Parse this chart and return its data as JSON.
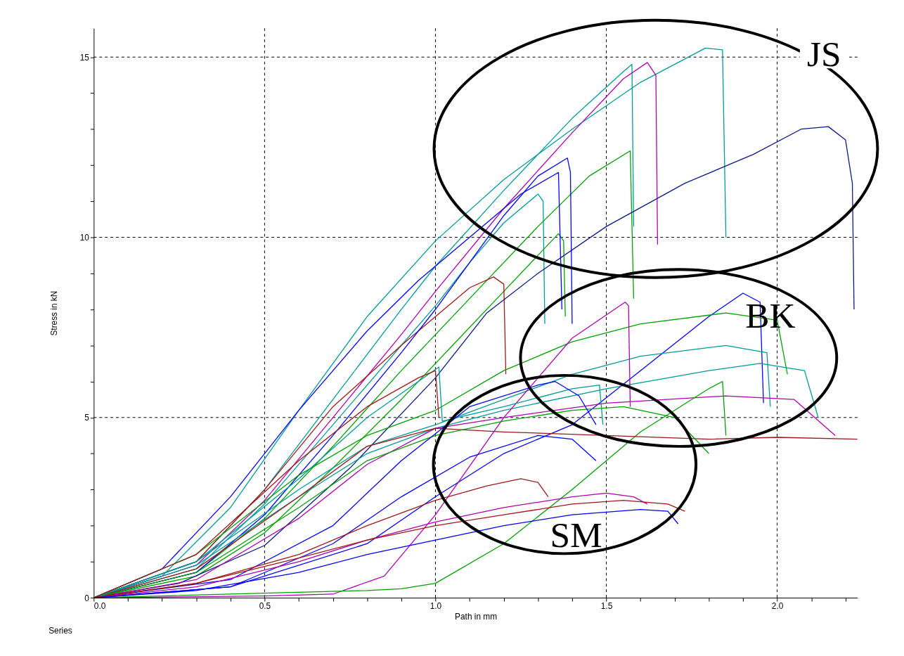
{
  "chart_data": {
    "type": "line",
    "xlabel": "Path in mm",
    "ylabel": "Stress in kN",
    "xlim": [
      0,
      2.235
    ],
    "ylim": [
      0,
      15.8
    ],
    "xticks": [
      {
        "value": 0,
        "label": "0.0"
      },
      {
        "value": 0.1,
        "label": null
      },
      {
        "value": 0.2,
        "label": null
      },
      {
        "value": 0.3,
        "label": null
      },
      {
        "value": 0.4,
        "label": null
      },
      {
        "value": 0.5,
        "label": "0.5"
      },
      {
        "value": 0.6,
        "label": null
      },
      {
        "value": 0.7,
        "label": null
      },
      {
        "value": 0.8,
        "label": null
      },
      {
        "value": 0.9,
        "label": null
      },
      {
        "value": 1,
        "label": "1.0"
      },
      {
        "value": 1.1,
        "label": null
      },
      {
        "value": 1.2,
        "label": null
      },
      {
        "value": 1.3,
        "label": null
      },
      {
        "value": 1.4,
        "label": null
      },
      {
        "value": 1.5,
        "label": "1.5"
      },
      {
        "value": 1.6,
        "label": null
      },
      {
        "value": 1.7,
        "label": null
      },
      {
        "value": 1.8,
        "label": null
      },
      {
        "value": 1.9,
        "label": null
      },
      {
        "value": 2,
        "label": "2.0"
      },
      {
        "value": 2.1,
        "label": null
      },
      {
        "value": 2.2,
        "label": null
      }
    ],
    "yticks": [
      0,
      {
        "value": 1,
        "label": null
      },
      {
        "value": 2,
        "label": null
      },
      {
        "value": 3,
        "label": null
      },
      {
        "value": 4,
        "label": null
      },
      5,
      {
        "value": 6,
        "label": null
      },
      {
        "value": 7,
        "label": null
      },
      {
        "value": 8,
        "label": null
      },
      {
        "value": 9,
        "label": null
      },
      10,
      {
        "value": 11,
        "label": null
      },
      {
        "value": 12,
        "label": null
      },
      {
        "value": 13,
        "label": null
      },
      {
        "value": 14,
        "label": null
      },
      15
    ],
    "grid": true,
    "line_style": "solid",
    "series": [
      {
        "color": "#009a9a",
        "x": [
          0,
          0.2,
          0.4,
          0.6,
          0.8,
          1.0,
          1.2,
          1.4,
          1.6,
          1.79,
          1.84,
          1.85
        ],
        "values": [
          0,
          0.6,
          2.5,
          5.2,
          7.8,
          9.9,
          11.6,
          13.0,
          14.3,
          15.25,
          15.2,
          10.0
        ]
      },
      {
        "color": "#009a9a",
        "x": [
          0,
          0.3,
          0.5,
          0.7,
          0.9,
          1.0,
          1.2,
          1.4,
          1.55,
          1.575,
          1.58
        ],
        "values": [
          0,
          1.0,
          3.0,
          5.5,
          8.0,
          9.2,
          11.3,
          13.3,
          14.6,
          14.8,
          10.3
        ]
      },
      {
        "color": "#b000b0",
        "x": [
          0,
          0.3,
          0.5,
          0.7,
          0.9,
          1.0,
          1.2,
          1.4,
          1.55,
          1.62,
          1.645,
          1.65
        ],
        "values": [
          0,
          0.9,
          2.7,
          5.0,
          7.3,
          8.5,
          10.8,
          12.9,
          14.4,
          14.85,
          14.5,
          9.8
        ]
      },
      {
        "color": "#00a000",
        "x": [
          0,
          0.3,
          0.5,
          0.7,
          0.9,
          1.1,
          1.3,
          1.45,
          1.57,
          1.58
        ],
        "values": [
          0,
          0.7,
          2.2,
          4.2,
          6.3,
          8.3,
          10.3,
          11.7,
          12.4,
          8.3
        ]
      },
      {
        "color": "#009a9a",
        "x": [
          0,
          0.3,
          0.5,
          0.7,
          0.9,
          1.0,
          1.1,
          1.2,
          1.3,
          1.315,
          1.32
        ],
        "values": [
          0,
          0.8,
          2.6,
          4.8,
          7.0,
          8.1,
          9.3,
          10.4,
          11.2,
          11.0,
          7.6
        ]
      },
      {
        "color": "#00a000",
        "x": [
          0,
          0.3,
          0.5,
          0.7,
          0.9,
          1.05,
          1.2,
          1.3,
          1.36,
          1.375,
          1.38
        ],
        "values": [
          0,
          0.6,
          1.8,
          3.6,
          5.5,
          7.0,
          8.5,
          9.5,
          10.1,
          9.9,
          7.8
        ]
      },
      {
        "color": "#a01818",
        "x": [
          0,
          0.3,
          0.5,
          0.7,
          0.9,
          1.0,
          1.1,
          1.17,
          1.2,
          1.206
        ],
        "values": [
          0,
          1.0,
          3.0,
          5.3,
          7.0,
          7.8,
          8.6,
          8.9,
          8.7,
          6.2
        ]
      },
      {
        "color": "#0a1a80",
        "x": [
          0,
          0.25,
          0.5,
          0.75,
          1.0,
          1.15,
          1.3,
          1.5,
          1.73,
          1.93,
          2.07,
          2.15,
          2.2,
          2.22,
          2.225
        ],
        "values": [
          0,
          0.4,
          1.45,
          3.6,
          6.1,
          7.9,
          9.0,
          10.3,
          11.5,
          12.3,
          13.0,
          13.07,
          12.7,
          11.5,
          8.0
        ]
      },
      {
        "color": "#0000ff",
        "x": [
          0,
          0.2,
          0.4,
          0.6,
          0.8,
          0.95,
          1.1,
          1.25,
          1.36,
          1.37
        ],
        "values": [
          0,
          0.8,
          2.8,
          5.2,
          7.4,
          8.8,
          10.0,
          11.2,
          11.8,
          8.0
        ]
      },
      {
        "color": "#0000ff",
        "x": [
          0,
          0.3,
          0.5,
          0.7,
          0.9,
          1.0,
          1.1,
          1.2,
          1.3,
          1.386,
          1.395,
          1.4
        ],
        "values": [
          0,
          0.7,
          2.3,
          4.5,
          6.8,
          8.0,
          9.3,
          10.6,
          11.7,
          12.2,
          11.8,
          7.6
        ]
      },
      {
        "color": "#0000ff",
        "x": [
          0,
          0.4,
          0.8,
          1.0,
          1.2,
          1.4,
          1.6,
          1.8,
          1.9,
          1.95,
          1.96
        ],
        "values": [
          0,
          0.3,
          1.5,
          2.8,
          4.0,
          4.8,
          6.3,
          7.8,
          8.45,
          8.2,
          5.4
        ]
      },
      {
        "color": "#00a000",
        "x": [
          0,
          0.3,
          0.6,
          0.8,
          1.0,
          1.2,
          1.4,
          1.6,
          1.85,
          2.0,
          2.03
        ],
        "values": [
          0,
          1.2,
          3.4,
          4.5,
          5.2,
          6.3,
          7.1,
          7.6,
          7.9,
          7.7,
          6.2
        ]
      },
      {
        "color": "#009a9a",
        "x": [
          0,
          0.3,
          0.6,
          0.8,
          1.0,
          1.2,
          1.4,
          1.6,
          1.85,
          1.97,
          1.98
        ],
        "values": [
          0,
          1.0,
          3.0,
          4.2,
          4.8,
          5.5,
          6.2,
          6.7,
          7.0,
          6.8,
          5.3
        ]
      },
      {
        "color": "#009a9a",
        "x": [
          0,
          0.3,
          0.6,
          0.8,
          1.0,
          1.2,
          1.5,
          1.8,
          1.95,
          2.08,
          2.12
        ],
        "values": [
          0,
          0.9,
          2.8,
          4.0,
          4.7,
          5.2,
          5.8,
          6.3,
          6.5,
          6.3,
          5.0
        ]
      },
      {
        "color": "#b000b0",
        "x": [
          0,
          0.3,
          0.6,
          0.8,
          1.0,
          1.2,
          1.5,
          1.85,
          2.05,
          2.17
        ],
        "values": [
          0,
          0.5,
          2.2,
          3.7,
          4.7,
          5.0,
          5.4,
          5.6,
          5.5,
          4.5
        ]
      },
      {
        "color": "#b000b0",
        "x": [
          0,
          0.5,
          0.7,
          0.85,
          1.0,
          1.2,
          1.4,
          1.555,
          1.565,
          1.57
        ],
        "values": [
          0,
          0.05,
          0.1,
          0.6,
          2.3,
          5.0,
          7.2,
          8.2,
          8.1,
          5.3
        ]
      },
      {
        "color": "#00a000",
        "x": [
          0,
          0.4,
          0.8,
          0.9,
          1.0,
          1.2,
          1.4,
          1.6,
          1.8,
          1.84,
          1.85
        ],
        "values": [
          0,
          0.1,
          0.2,
          0.25,
          0.4,
          1.5,
          3.0,
          4.6,
          5.8,
          6.0,
          4.5
        ]
      },
      {
        "color": "#a01818",
        "x": [
          0,
          0.3,
          0.6,
          0.8,
          1.0,
          1.2,
          1.5,
          1.8,
          2.0,
          2.235
        ],
        "values": [
          0,
          0.8,
          2.8,
          4.2,
          4.7,
          4.6,
          4.5,
          4.4,
          4.45,
          4.4
        ]
      },
      {
        "color": "#00a000",
        "x": [
          0,
          0.3,
          0.6,
          0.8,
          1.0,
          1.2,
          1.4,
          1.55,
          1.7,
          1.8
        ],
        "values": [
          0,
          0.7,
          2.5,
          3.8,
          4.5,
          4.9,
          5.2,
          5.3,
          5.0,
          4.0
        ]
      },
      {
        "color": "#009a9a",
        "x": [
          0,
          0.3,
          0.6,
          0.8,
          0.95,
          1.01,
          1.02,
          1.2,
          1.4,
          1.48,
          1.49
        ],
        "values": [
          0,
          1.0,
          3.3,
          5.0,
          6.0,
          6.4,
          4.9,
          5.3,
          5.8,
          5.9,
          4.8
        ]
      },
      {
        "color": "#a01818",
        "x": [
          0,
          0.3,
          0.6,
          0.8,
          0.95,
          1.0,
          1.01
        ],
        "values": [
          0,
          1.2,
          3.8,
          5.3,
          6.1,
          6.3,
          5.0
        ]
      },
      {
        "color": "#0000ff",
        "x": [
          0,
          0.4,
          0.7,
          0.9,
          1.1,
          1.3,
          1.35,
          1.42,
          1.47
        ],
        "values": [
          0,
          0.5,
          2.0,
          3.8,
          5.3,
          5.9,
          6.0,
          5.6,
          4.8
        ]
      },
      {
        "color": "#0000ff",
        "x": [
          0,
          0.4,
          0.7,
          0.9,
          1.1,
          1.3,
          1.4,
          1.47
        ],
        "values": [
          0,
          0.3,
          1.5,
          2.8,
          3.9,
          4.5,
          4.4,
          3.8
        ]
      },
      {
        "color": "#a01818",
        "x": [
          0,
          0.3,
          0.6,
          0.8,
          1.0,
          1.15,
          1.25,
          1.3,
          1.33
        ],
        "values": [
          0,
          0.4,
          1.2,
          2.0,
          2.7,
          3.1,
          3.3,
          3.2,
          2.8
        ]
      },
      {
        "color": "#b000b0",
        "x": [
          0,
          0.3,
          0.6,
          0.8,
          1.0,
          1.2,
          1.4,
          1.5,
          1.58,
          1.62
        ],
        "values": [
          0,
          0.3,
          1.0,
          1.6,
          2.1,
          2.5,
          2.8,
          2.9,
          2.8,
          2.6
        ]
      },
      {
        "color": "#a01818",
        "x": [
          0,
          0.3,
          0.6,
          0.8,
          1.0,
          1.2,
          1.4,
          1.55,
          1.68,
          1.73
        ],
        "values": [
          0,
          0.4,
          1.1,
          1.6,
          2.0,
          2.3,
          2.6,
          2.7,
          2.6,
          2.4
        ]
      },
      {
        "color": "#0000ff",
        "x": [
          0,
          0.3,
          0.6,
          0.8,
          1.0,
          1.2,
          1.4,
          1.6,
          1.68,
          1.71
        ],
        "values": [
          0,
          0.2,
          0.7,
          1.2,
          1.6,
          2.0,
          2.3,
          2.45,
          2.4,
          2.05
        ]
      }
    ],
    "annotations": [
      "JS",
      "BK",
      "SM",
      "Series"
    ]
  }
}
